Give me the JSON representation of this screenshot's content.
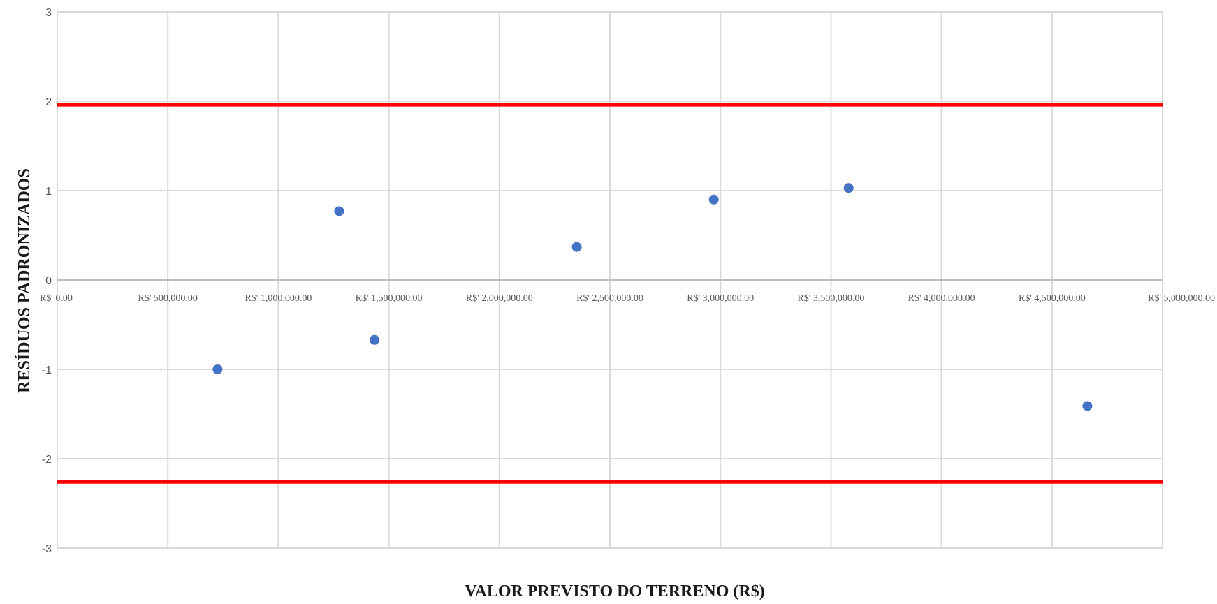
{
  "chart_data": {
    "type": "scatter",
    "title": "",
    "xlabel": "VALOR PREVISTO DO TERRENO (R$)",
    "ylabel": "RESÍDUOS PADRONIZADOS",
    "xlim": [
      0,
      5000000
    ],
    "ylim": [
      -3,
      3
    ],
    "grid": true,
    "x_ticks": [
      0,
      500000,
      1000000,
      1500000,
      2000000,
      2500000,
      3000000,
      3500000,
      4000000,
      4500000,
      5000000
    ],
    "x_tick_labels": [
      "R$' 0.00",
      "R$' 500,000.00",
      "R$' 1,000,000.00",
      "R$' 1,500,000.00",
      "R$' 2,000,000.00",
      "R$' 2,500,000.00",
      "R$' 3,000,000.00",
      "R$' 3,500,000.00",
      "R$' 4,000,000.00",
      "R$' 4,500,000.00",
      "R$' 5,000,000.00"
    ],
    "y_ticks": [
      3,
      2,
      1,
      0,
      -1,
      -2,
      -3
    ],
    "y_tick_labels": [
      "3",
      "2",
      "1",
      "0",
      "-1",
      "-2",
      "-3"
    ],
    "points": [
      {
        "x": 725000,
        "y": -1.0
      },
      {
        "x": 1275000,
        "y": 0.77
      },
      {
        "x": 1435000,
        "y": -0.67
      },
      {
        "x": 2350000,
        "y": 0.37
      },
      {
        "x": 2970000,
        "y": 0.9
      },
      {
        "x": 3580000,
        "y": 1.03
      },
      {
        "x": 4660000,
        "y": -1.41
      }
    ],
    "reference_lines": [
      {
        "y": 1.96,
        "color": "#ff0000"
      },
      {
        "y": -2.26,
        "color": "#ff0000"
      }
    ],
    "point_color": "#4472c4",
    "grid_color": "#d9d9d9"
  }
}
